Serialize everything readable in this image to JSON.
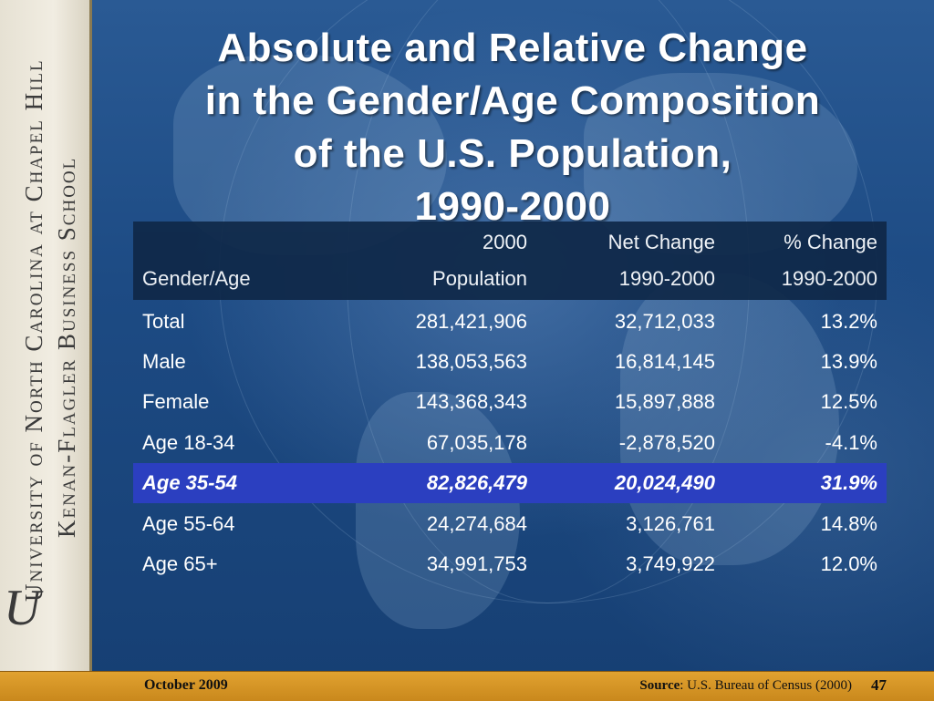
{
  "sidebar": {
    "line1": "University of North Carolina at Chapel Hill",
    "line2": "Kenan-Flagler Business School"
  },
  "title": {
    "line1": "Absolute and Relative Change",
    "line2": "in the Gender/Age Composition",
    "line3": "of the U.S. Population,",
    "line4": "1990-2000"
  },
  "table": {
    "headers": [
      {
        "line1": "",
        "line2": "Gender/Age"
      },
      {
        "line1": "2000",
        "line2": "Population"
      },
      {
        "line1": "Net Change",
        "line2": "1990-2000"
      },
      {
        "line1": "% Change",
        "line2": "1990-2000"
      }
    ],
    "rows": [
      {
        "label": "Total",
        "population": "281,421,906",
        "net_change": "32,712,033",
        "pct_change": "13.2%"
      },
      {
        "label": "Male",
        "population": "138,053,563",
        "net_change": "16,814,145",
        "pct_change": "13.9%"
      },
      {
        "label": "Female",
        "population": "143,368,343",
        "net_change": "15,897,888",
        "pct_change": "12.5%"
      },
      {
        "label": "Age 18-34",
        "population": "67,035,178",
        "net_change": "-2,878,520",
        "pct_change": "-4.1%"
      },
      {
        "label": "Age 35-54",
        "population": "82,826,479",
        "net_change": "20,024,490",
        "pct_change": "31.9%"
      },
      {
        "label": "Age 55-64",
        "population": "24,274,684",
        "net_change": "3,126,761",
        "pct_change": "14.8%"
      },
      {
        "label": "Age 65+",
        "population": "34,991,753",
        "net_change": "3,749,922",
        "pct_change": "12.0%"
      }
    ]
  },
  "footer": {
    "date": "October 2009",
    "source_label": "Source",
    "source_text": ": U.S. Bureau of Census (2000)",
    "page": "47"
  },
  "colors": {
    "background": "#1d4b84",
    "highlight_row": "#2b3fc0",
    "header_band": "#0f2848",
    "footer": "#d6951f"
  }
}
